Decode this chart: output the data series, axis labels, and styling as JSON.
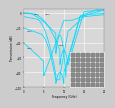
{
  "xlabel": "Frequency (GHz)",
  "ylabel": "Transmission (dB)",
  "xlim": [
    0,
    20
  ],
  "ylim": [
    -100,
    5
  ],
  "yticks": [
    0,
    -20,
    -40,
    -60,
    -80,
    -100
  ],
  "xticks": [
    0,
    5,
    10,
    15,
    20
  ],
  "bg_color": "#d8d8d8",
  "grid_color": "#ffffff",
  "line_color": "#00d8ff",
  "line_width": 0.55,
  "fig_bg": "#cccccc"
}
